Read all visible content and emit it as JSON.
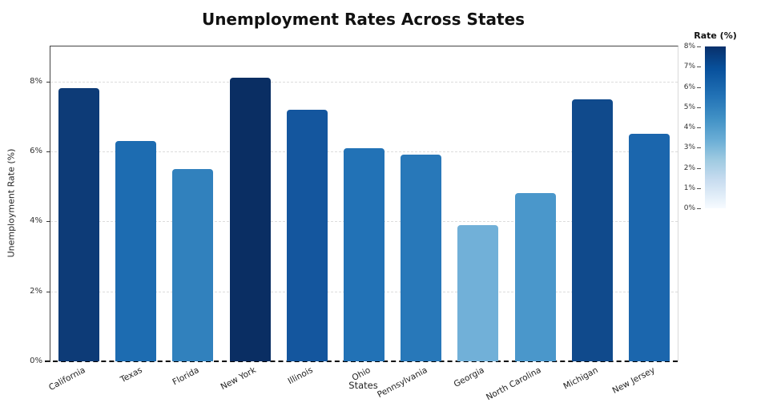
{
  "title": "Unemployment Rates Across States",
  "chart_data": {
    "type": "bar",
    "title": "Unemployment Rates Across States",
    "xlabel": "States",
    "ylabel": "Unemployment Rate (%)",
    "categories": [
      "California",
      "Texas",
      "Florida",
      "New York",
      "Illinois",
      "Ohio",
      "Pennsylvania",
      "Georgia",
      "North Carolina",
      "Michigan",
      "New Jersey"
    ],
    "values": [
      7.8,
      6.3,
      5.5,
      8.1,
      7.2,
      6.1,
      5.9,
      3.9,
      4.8,
      7.5,
      6.5
    ],
    "bar_colors": [
      "#0d3b77",
      "#1d6cb1",
      "#3181bd",
      "#0a2e63",
      "#14569e",
      "#2272b6",
      "#2878b9",
      "#71b0d8",
      "#4a97cb",
      "#104a8c",
      "#1b66ad"
    ],
    "ylim": [
      0,
      9
    ],
    "ytick_values": [
      0,
      2,
      4,
      6,
      8
    ],
    "yticks": [
      "0%",
      "2%",
      "4%",
      "6%",
      "8%"
    ],
    "grid": true,
    "baseline_style": "dashed",
    "legend": {
      "title": "Rate (%)",
      "position": "right",
      "ticks": [
        "8%",
        "7%",
        "6%",
        "5%",
        "4%",
        "3%",
        "2%",
        "1%",
        "0%"
      ],
      "gradient_stops": [
        "#08306b 0%",
        "#08519c 14%",
        "#2171b5 30%",
        "#4292c6 45%",
        "#6baed6 58%",
        "#9ecae1 70%",
        "#c6dbef 82%",
        "#deebf7 91%",
        "#f7fbff 100%"
      ]
    }
  }
}
